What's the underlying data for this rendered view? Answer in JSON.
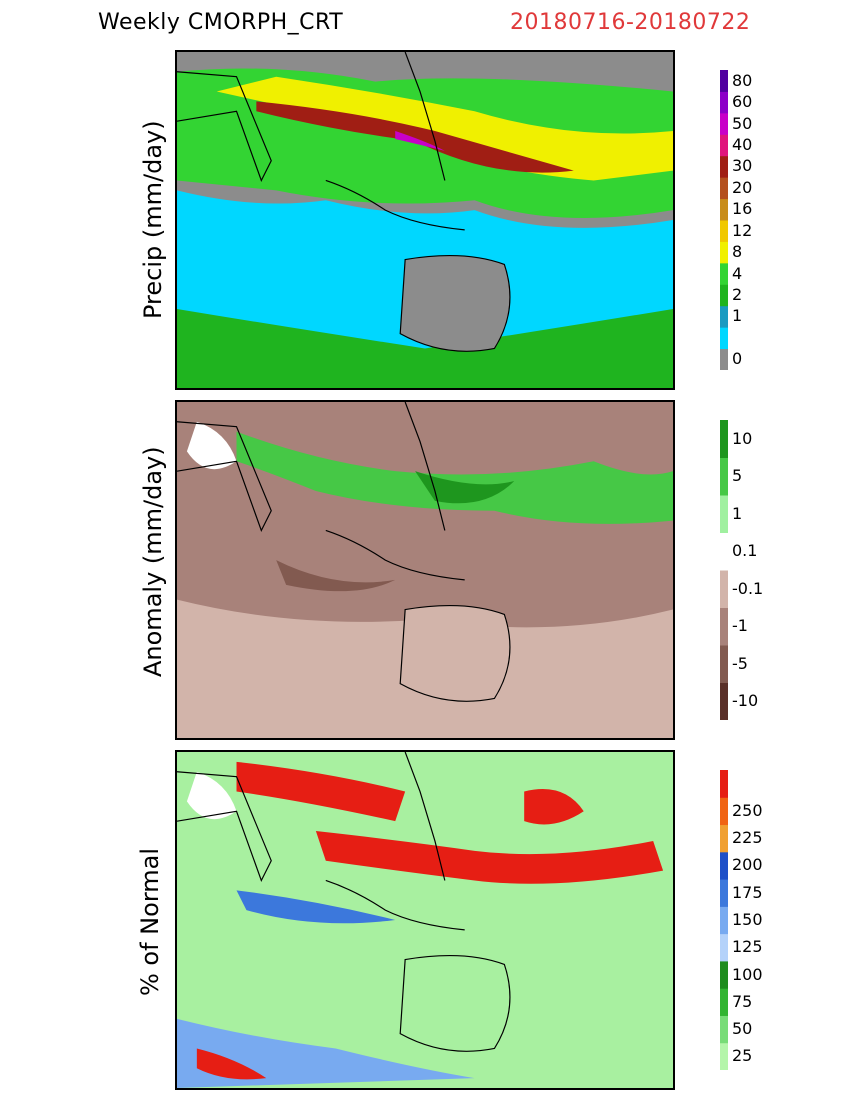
{
  "header": {
    "title": "Weekly CMORPH_CRT",
    "date_range": "20180716-20180722"
  },
  "panels": [
    {
      "id": "precip",
      "ylabel": "Precip (mm/day)",
      "bg": "#8c8c8c",
      "colorbar": [
        {
          "label": "0",
          "color": "#8c8c8c"
        },
        {
          "label": "",
          "color": "#00d7ff"
        },
        {
          "label": "1",
          "color": "#1a9bc1"
        },
        {
          "label": "2",
          "color": "#1fb41f"
        },
        {
          "label": "4",
          "color": "#33d433"
        },
        {
          "label": "8",
          "color": "#f0f000"
        },
        {
          "label": "12",
          "color": "#f0c800"
        },
        {
          "label": "16",
          "color": "#c88c1a"
        },
        {
          "label": "20",
          "color": "#b4501e"
        },
        {
          "label": "30",
          "color": "#a01e14"
        },
        {
          "label": "40",
          "color": "#e0147c"
        },
        {
          "label": "50",
          "color": "#c800c8"
        },
        {
          "label": "60",
          "color": "#8c00c8"
        },
        {
          "label": "80",
          "color": "#5000a0"
        }
      ]
    },
    {
      "id": "anomaly",
      "ylabel": "Anomaly (mm/day)",
      "bg": "#a8827a",
      "colorbar": [
        {
          "label": "-10",
          "color": "#5a3028"
        },
        {
          "label": "-5",
          "color": "#825a50"
        },
        {
          "label": "-1",
          "color": "#a8827a"
        },
        {
          "label": "-0.1",
          "color": "#d2b4aa"
        },
        {
          "label": "0.1",
          "color": "#ffffff"
        },
        {
          "label": "1",
          "color": "#a0f0a0"
        },
        {
          "label": "5",
          "color": "#46c846"
        },
        {
          "label": "10",
          "color": "#1e961e"
        }
      ]
    },
    {
      "id": "percent",
      "ylabel": "% of Normal",
      "bg": "#a8f0a0",
      "colorbar": [
        {
          "label": "25",
          "color": "#b4f5aa"
        },
        {
          "label": "50",
          "color": "#78dc78"
        },
        {
          "label": "75",
          "color": "#32b432"
        },
        {
          "label": "100",
          "color": "#1e8c1e"
        },
        {
          "label": "125",
          "color": "#b4d2fa"
        },
        {
          "label": "150",
          "color": "#78aaf0"
        },
        {
          "label": "175",
          "color": "#3c78dc"
        },
        {
          "label": "200",
          "color": "#1e50c8"
        },
        {
          "label": "225",
          "color": "#f0a032"
        },
        {
          "label": "250",
          "color": "#f06414"
        },
        {
          "label": "",
          "color": "#e61e14"
        }
      ]
    }
  ]
}
